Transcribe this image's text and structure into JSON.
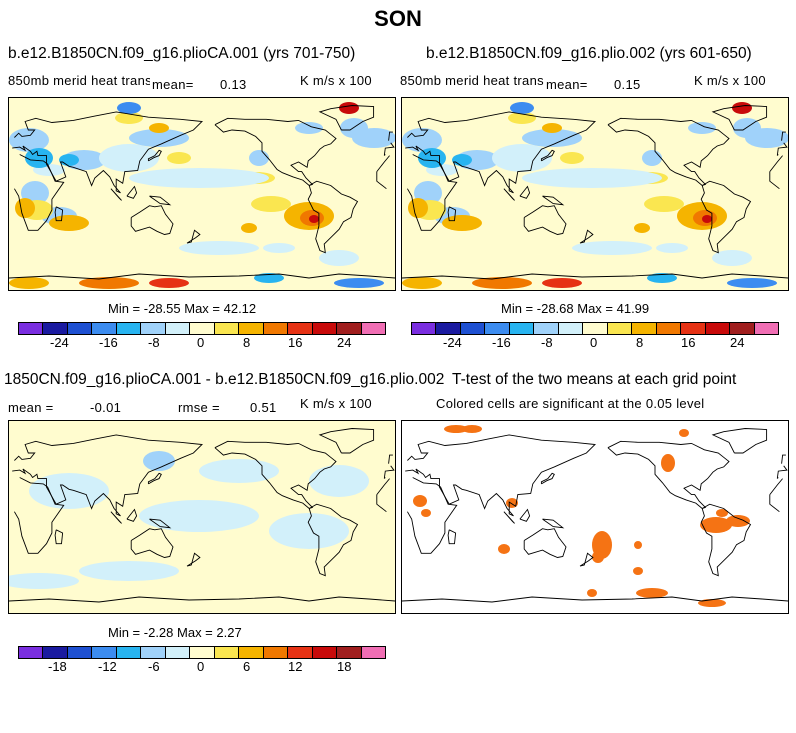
{
  "figure_title": "SON",
  "panels": [
    {
      "title": "b.e12.B1850CN.f09_g16.plioCA.001 (yrs 701-750)",
      "left_label": "850mb merid heat transp",
      "mean_label": "mean=",
      "mean_value": "0.13",
      "units": "K m/s x 100",
      "minmax": "Min = -28.55 Max =  42.12",
      "labelbar": [
        "-24",
        "-16",
        "-8",
        "0",
        "8",
        "16",
        "24"
      ]
    },
    {
      "title": "b.e12.B1850CN.f09_g16.plio.002 (yrs 601-650)",
      "left_label": "850mb merid heat transp",
      "mean_label": "mean=",
      "mean_value": "0.15",
      "units": "K m/s x 100",
      "minmax": "Min = -28.68 Max =  41.99",
      "labelbar": [
        "-24",
        "-16",
        "-8",
        "0",
        "8",
        "16",
        "24"
      ]
    },
    {
      "title": "1850CN.f09_g16.plioCA.001 - b.e12.B1850CN.f09_g16.plio.002",
      "mean_label": "mean =",
      "mean_value": "-0.01",
      "rmse_label": "rmse =",
      "rmse_value": "0.51",
      "units": "K m/s x 100",
      "minmax": "Min =  -2.28 Max =   2.27",
      "labelbar": [
        "-18",
        "-12",
        "-6",
        "0",
        "6",
        "12",
        "18"
      ]
    },
    {
      "title": "T-test of the two means at each grid point",
      "subtitle": "Colored cells are significant at the 0.05 level"
    }
  ],
  "colors": {
    "palette": [
      "#7a2ee0",
      "#1a1aa0",
      "#1e50d2",
      "#3c8cf0",
      "#28b4f0",
      "#a0d2fa",
      "#d2f0fa",
      "#fffccf",
      "#fae650",
      "#f5b400",
      "#f07800",
      "#e63214",
      "#c80a0a",
      "#a01e1e",
      "#f06eb4"
    ],
    "significance": "#f57314",
    "coast": "#000000"
  }
}
